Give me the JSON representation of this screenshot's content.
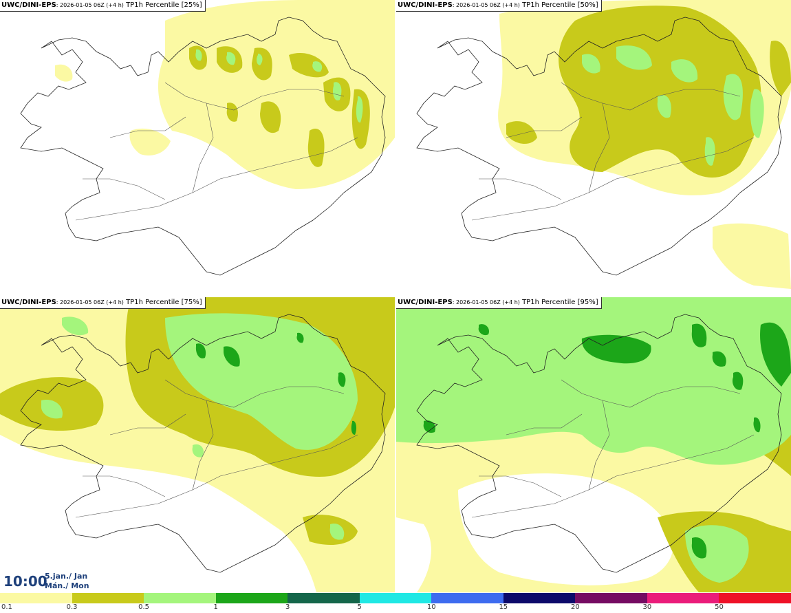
{
  "colors": {
    "c01": "#fbf9a3",
    "c03": "#c8ca1b",
    "c05": "#a4f57c",
    "c1": "#1ca619",
    "c3": "#14664a",
    "c5": "#1fe8e4",
    "c10": "#3d6bef",
    "c15": "#0c0a6a",
    "c20": "#750b62",
    "c30": "#ea1c7a",
    "c50": "#ee1127",
    "coast": "#222222"
  },
  "panels": [
    {
      "model": "UWC/DINI-EPS",
      "run": ": 2026-01-05 06Z (+4 h)",
      "field": " TP1h Percentile [25%]"
    },
    {
      "model": "UWC/DINI-EPS",
      "run": ": 2026-01-05 06Z (+4 h)",
      "field": " TP1h Percentile [50%]"
    },
    {
      "model": "UWC/DINI-EPS",
      "run": ": 2026-01-05 06Z (+4 h)",
      "field": " TP1h Percentile [75%]"
    },
    {
      "model": "UWC/DINI-EPS",
      "run": ": 2026-01-05 06Z (+4 h)",
      "field": " TP1h Percentile [95%]"
    }
  ],
  "valid_time": {
    "clock": "10:00",
    "date_line": "5.jan./ Jan",
    "day_line": "Mán./ Mon"
  },
  "colorbar": {
    "labels": [
      "0.1",
      "0.3",
      "0.5",
      "1",
      "3",
      "5",
      "10",
      "15",
      "20",
      "30",
      "50"
    ],
    "colors": [
      "#fbf9a3",
      "#c8ca1b",
      "#a4f57c",
      "#1ca619",
      "#14664a",
      "#1fe8e4",
      "#3d6bef",
      "#0c0a6a",
      "#750b62",
      "#ea1c7a",
      "#ee1127"
    ]
  }
}
